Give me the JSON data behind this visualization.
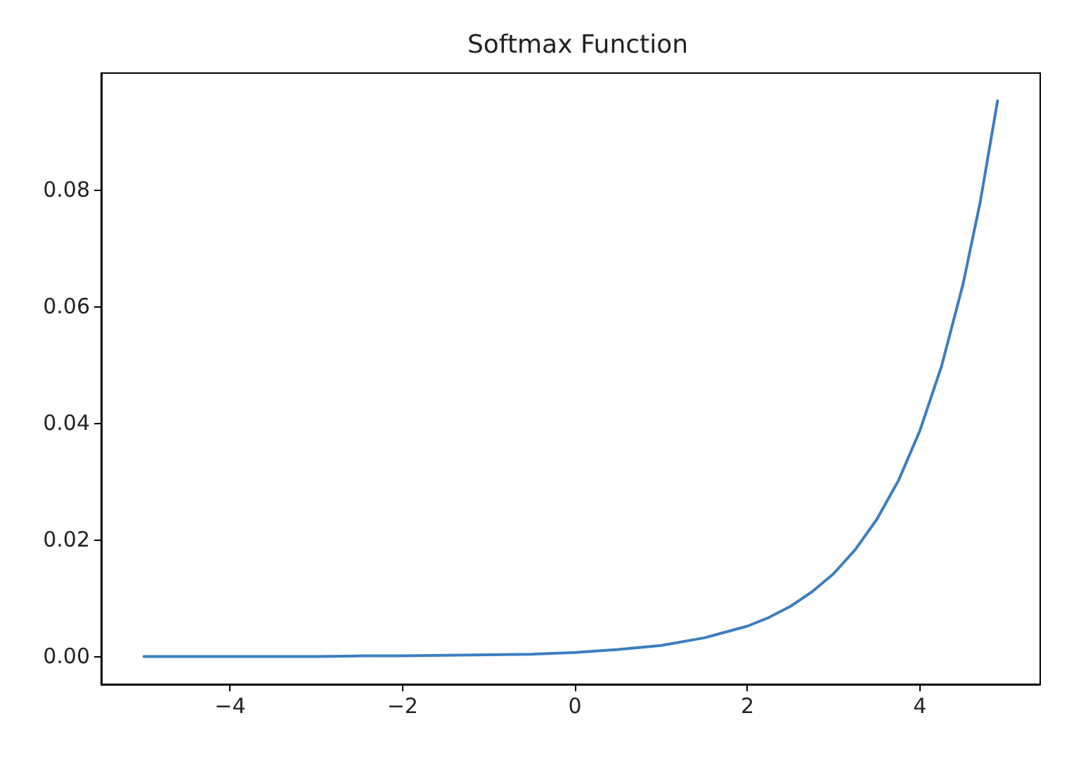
{
  "chart_data": {
    "type": "line",
    "title": "Softmax Function",
    "x": [
      -5,
      -4.5,
      -4,
      -3.5,
      -3,
      -2.5,
      -2,
      -1.5,
      -1,
      -0.5,
      0,
      0.5,
      1,
      1.5,
      2,
      2.25,
      2.5,
      2.75,
      3,
      3.25,
      3.5,
      3.75,
      4,
      4.25,
      4.5,
      4.7,
      4.9
    ],
    "series": [
      {
        "color": "#3d7ebf",
        "values": [
          0,
          0,
          0,
          0,
          0,
          0.0001,
          0.0001,
          0.0002,
          0.0003,
          0.0004,
          0.0007,
          0.0012,
          0.0019,
          0.0032,
          0.0052,
          0.0067,
          0.0086,
          0.0111,
          0.0142,
          0.0183,
          0.0235,
          0.0301,
          0.0387,
          0.0497,
          0.0638,
          0.0779,
          0.0952
        ]
      }
    ],
    "xlim": [
      -5.495,
      5.395
    ],
    "ylim": [
      -0.00476,
      0.09996
    ],
    "xticks": [
      {
        "value": -4,
        "label": "−4"
      },
      {
        "value": -2,
        "label": "−2"
      },
      0,
      2,
      4
    ],
    "yticks": [
      {
        "value": 0,
        "label": "0.00"
      },
      {
        "value": 0.02,
        "label": "0.02"
      },
      {
        "value": 0.04,
        "label": "0.04"
      },
      {
        "value": 0.06,
        "label": "0.06"
      },
      {
        "value": 0.08,
        "label": "0.08"
      }
    ],
    "grid": false,
    "marker": "none",
    "line_style": "solid"
  }
}
